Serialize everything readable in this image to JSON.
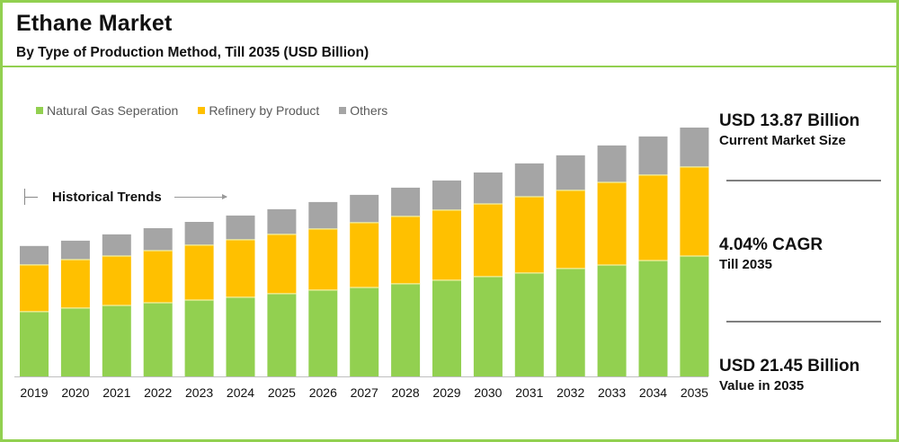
{
  "header": {
    "title": "Ethane Market",
    "subtitle": "By Type of Production Method, Till 2035 (USD Billion)"
  },
  "annotation": {
    "historical_label": "Historical Trends"
  },
  "stats": [
    {
      "value": "USD 13.87 Billion",
      "label": "Current Market Size"
    },
    {
      "value": "4.04% CAGR",
      "label": "Till 2035"
    },
    {
      "value": "USD 21.45 Billion",
      "label": "Value in 2035"
    }
  ],
  "colors": {
    "frame": "#92d050",
    "natural_gas": "#92d050",
    "refinery": "#ffc000",
    "others": "#a5a5a5"
  },
  "chart_data": {
    "type": "bar",
    "stacked": true,
    "title": "Ethane Market",
    "subtitle": "By Type of Production Method, Till 2035 (USD Billion)",
    "xlabel": "",
    "ylabel": "USD Billion",
    "ylim": [
      0,
      21.45
    ],
    "grid": false,
    "legend_position": "top-left",
    "categories": [
      "2019",
      "2020",
      "2021",
      "2022",
      "2023",
      "2024",
      "2025",
      "2026",
      "2027",
      "2028",
      "2029",
      "2030",
      "2031",
      "2032",
      "2033",
      "2034",
      "2035"
    ],
    "series": [
      {
        "name": "Natural Gas Seperation",
        "color": "#92d050",
        "values": [
          5.58,
          5.89,
          6.12,
          6.35,
          6.58,
          6.82,
          7.13,
          7.44,
          7.67,
          7.98,
          8.29,
          8.6,
          8.91,
          9.3,
          9.6,
          9.99,
          10.38
        ]
      },
      {
        "name": "Refinery by Product",
        "color": "#ffc000",
        "values": [
          4.03,
          4.18,
          4.26,
          4.49,
          4.73,
          4.96,
          5.11,
          5.27,
          5.58,
          5.81,
          6.04,
          6.27,
          6.58,
          6.74,
          7.13,
          7.36,
          7.67
        ]
      },
      {
        "name": "Others",
        "color": "#a5a5a5",
        "values": [
          1.63,
          1.63,
          1.86,
          1.94,
          2.01,
          2.09,
          2.17,
          2.32,
          2.4,
          2.48,
          2.56,
          2.71,
          2.87,
          3.02,
          3.18,
          3.33,
          3.4
        ]
      }
    ],
    "totals": [
      11.24,
      11.7,
      12.24,
      12.78,
      13.32,
      13.87,
      14.41,
      15.03,
      15.65,
      16.27,
      16.89,
      17.58,
      18.36,
      19.06,
      19.91,
      20.68,
      21.45
    ]
  }
}
